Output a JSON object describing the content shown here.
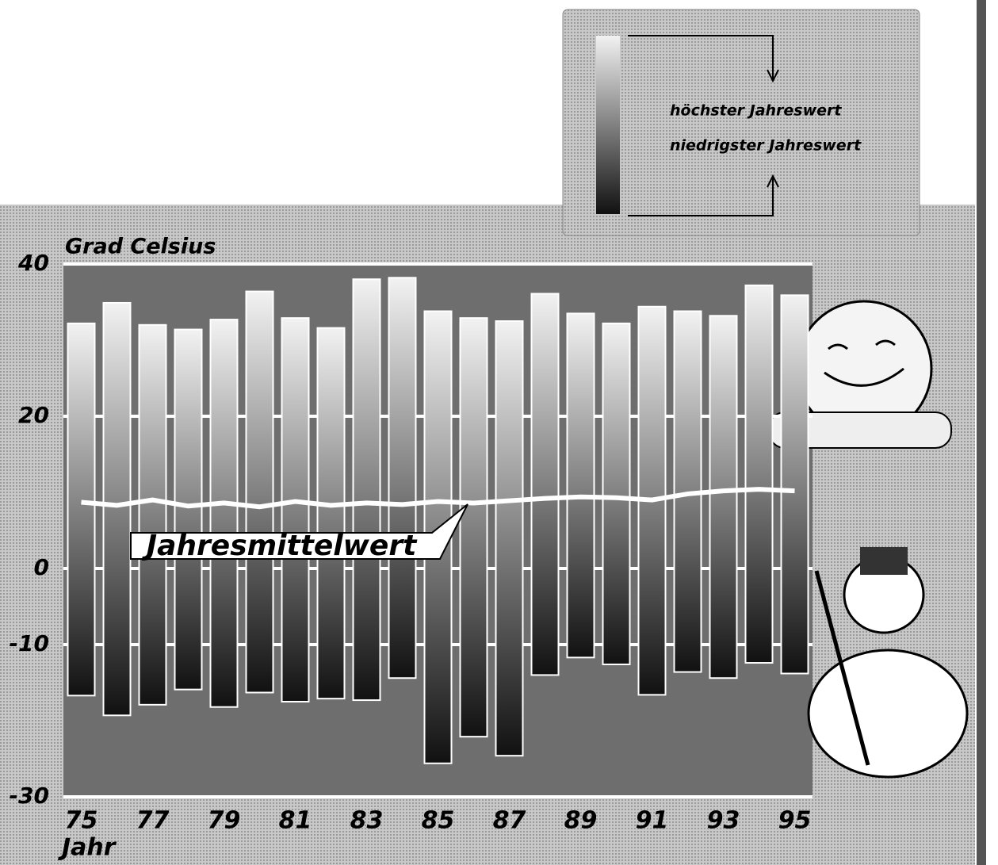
{
  "chart_data": {
    "type": "range_bar",
    "y_label": "Grad Celsius",
    "x_label": "Jahr",
    "annotation": "Jahresmittelwert",
    "categories": [
      "75",
      null,
      "77",
      null,
      "79",
      null,
      "81",
      null,
      "83",
      null,
      "85",
      null,
      "87",
      null,
      "89",
      null,
      "91",
      null,
      "93",
      null,
      "95"
    ],
    "series": [
      {
        "name": "höchster Jahreswert",
        "color": "#f2f2f2",
        "values": [
          32.2,
          34.9,
          32,
          31.4,
          32.7,
          36.4,
          32.9,
          31.6,
          38,
          38.2,
          33.8,
          32.9,
          32.5,
          36.1,
          33.5,
          32.2,
          34.4,
          33.8,
          33.2,
          37.2,
          35.9
        ]
      },
      {
        "name": "niedrigster Jahreswert",
        "color": "#111111",
        "values": [
          -16.7,
          -19.3,
          -17.9,
          -15.9,
          -18.2,
          -16.3,
          -17.5,
          -17.1,
          -17.3,
          -14.4,
          -25.6,
          -22.1,
          -24.6,
          -14,
          -11.7,
          -12.6,
          -16.6,
          -13.6,
          -14.4,
          -12.4,
          -13.8
        ]
      },
      {
        "name": "Jahresmittelwert",
        "color": "#ffffff",
        "values": [
          8.7,
          8.3,
          9,
          8.2,
          8.6,
          8.1,
          8.8,
          8.3,
          8.6,
          8.4,
          8.8,
          8.6,
          8.9,
          9.2,
          9.4,
          9.3,
          9,
          9.8,
          10.2,
          10.4,
          10.2
        ]
      }
    ],
    "ylim": [
      -30,
      40
    ],
    "yticks": [
      40,
      20,
      0,
      -10,
      -30
    ],
    "grid": true
  }
}
